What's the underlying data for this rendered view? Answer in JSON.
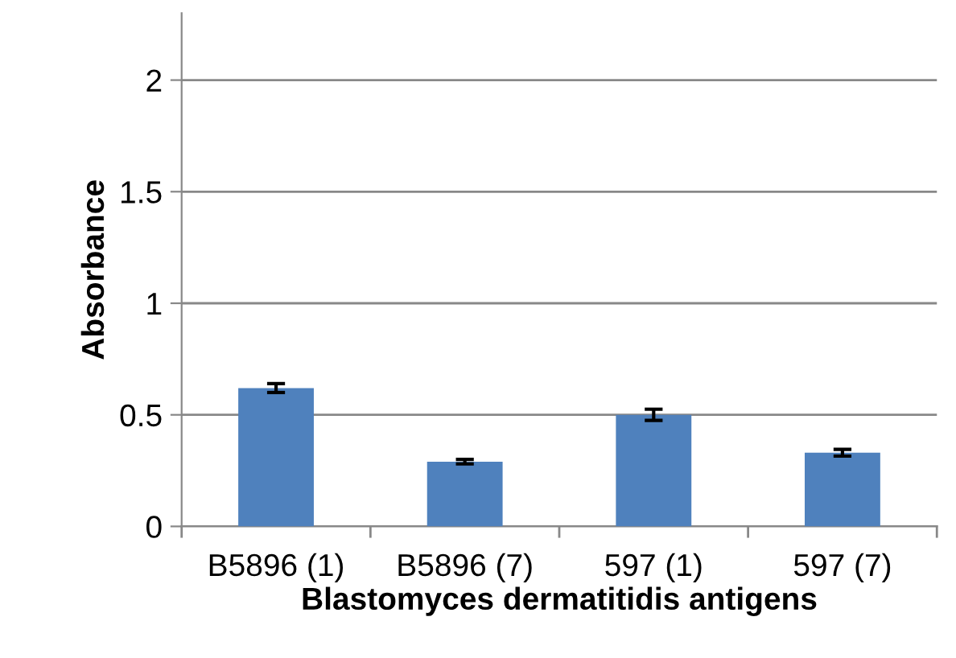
{
  "chart_data": {
    "type": "bar",
    "xlabel": "Blastomyces dermatitidis antigens",
    "ylabel": "Absorbance",
    "categories": [
      "B5896 (1)",
      "B5896 (7)",
      "597 (1)",
      "597 (7)"
    ],
    "values": [
      0.62,
      0.29,
      0.5,
      0.33
    ],
    "errors": [
      0.02,
      0.01,
      0.025,
      0.015
    ],
    "color": "#4f81bd",
    "ylim": [
      0,
      2.3
    ],
    "yticks": [
      0,
      0.5,
      1,
      1.5,
      2
    ],
    "grid": "y"
  }
}
